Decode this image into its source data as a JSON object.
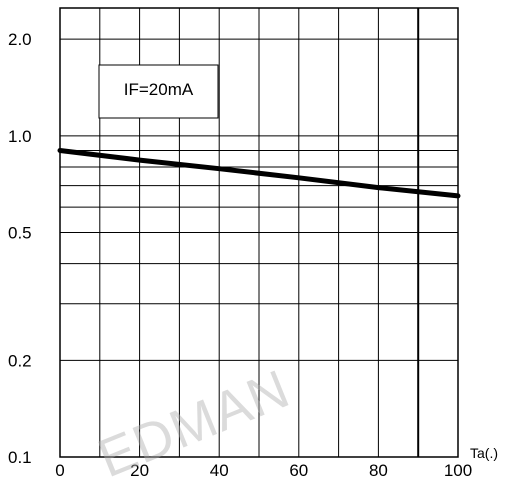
{
  "chart_data": {
    "type": "line",
    "title": "",
    "xlabel": "Ta(.)",
    "ylabel": "",
    "xlim": [
      0,
      100
    ],
    "ylim": [
      0.1,
      2.5
    ],
    "yscale": "log",
    "grid": true,
    "x_ticks": [
      {
        "value": 0,
        "label": "0"
      },
      {
        "value": 20,
        "label": "20"
      },
      {
        "value": 40,
        "label": "40"
      },
      {
        "value": 60,
        "label": "60"
      },
      {
        "value": 80,
        "label": "80"
      },
      {
        "value": 100,
        "label": "100"
      }
    ],
    "y_ticks": [
      {
        "value": 0.1,
        "label": "0.1"
      },
      {
        "value": 0.2,
        "label": "0.2"
      },
      {
        "value": 0.5,
        "label": "0.5"
      },
      {
        "value": 1.0,
        "label": "1.0"
      },
      {
        "value": 2.0,
        "label": "2.0"
      }
    ],
    "x_gridlines": [
      10,
      20,
      30,
      40,
      50,
      60,
      70,
      80,
      90
    ],
    "y_gridlines": [
      0.2,
      0.3,
      0.4,
      0.5,
      0.6,
      0.7,
      0.8,
      0.9,
      1.0,
      2.0
    ],
    "series": [
      {
        "x": [
          0,
          20,
          40,
          60,
          80,
          100
        ],
        "y": [
          0.9,
          0.84,
          0.79,
          0.74,
          0.69,
          0.65
        ]
      }
    ],
    "annotations": [
      {
        "text": "IF=20mA"
      }
    ]
  },
  "watermark": {
    "text": "EDMAN"
  },
  "colors": {
    "line": "#000000",
    "grid": "#000000",
    "background": "#ffffff",
    "watermark": "#b0b0b0"
  }
}
